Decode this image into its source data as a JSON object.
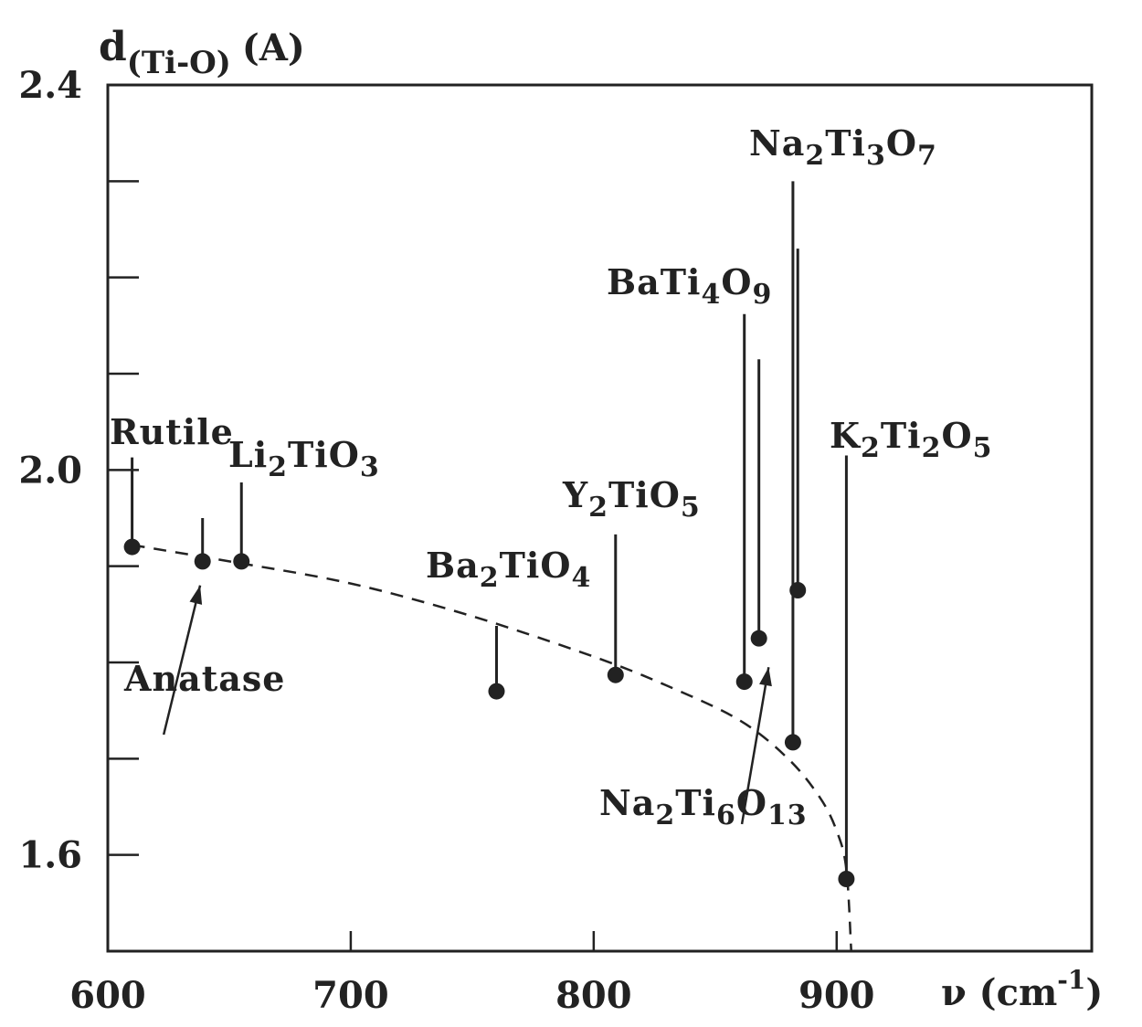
{
  "chart_data": {
    "type": "scatter",
    "ylabel": {
      "main": "d",
      "sub": "(Ti-O)",
      "unit": "(A)"
    },
    "xlabel": {
      "main": "ν (cm",
      "sup": "-1",
      "close": ")"
    },
    "xlim": [
      600,
      1005
    ],
    "ylim": [
      1.5,
      2.4
    ],
    "x_ticks": [
      600,
      700,
      800,
      900
    ],
    "x_tick_labels": [
      "600",
      "700",
      "800",
      "900"
    ],
    "y_ticks": [
      1.6,
      1.7,
      1.8,
      1.9,
      2.0,
      2.1,
      2.2,
      2.3,
      2.4
    ],
    "y_tick_labels": [
      {
        "value": 1.6,
        "label": "1.6"
      },
      {
        "value": 2.0,
        "label": "2.0"
      },
      {
        "value": 2.4,
        "label": "2.4"
      }
    ],
    "grid": false,
    "legend": "none",
    "series": [
      {
        "points": [
          {
            "x": 610,
            "y": 1.92
          },
          {
            "x": 639,
            "y": 1.905
          },
          {
            "x": 655,
            "y": 1.905
          },
          {
            "x": 760,
            "y": 1.77
          },
          {
            "x": 809,
            "y": 1.787
          },
          {
            "x": 862,
            "y": 1.78
          },
          {
            "x": 868,
            "y": 1.825
          },
          {
            "x": 882,
            "y": 1.717
          },
          {
            "x": 884,
            "y": 1.875
          },
          {
            "x": 904,
            "y": 1.575
          }
        ]
      }
    ],
    "stems": [
      {
        "x": 610,
        "y_from": 1.92,
        "y_to": 2.013
      },
      {
        "x": 639,
        "y_from": 1.905,
        "y_to": 1.95
      },
      {
        "x": 655,
        "y_from": 1.905,
        "y_to": 1.987
      },
      {
        "x": 760,
        "y_from": 1.77,
        "y_to": 1.838
      },
      {
        "x": 809,
        "y_from": 1.787,
        "y_to": 1.933
      },
      {
        "x": 862,
        "y_from": 1.78,
        "y_to": 2.162
      },
      {
        "x": 868,
        "y_from": 1.825,
        "y_to": 2.115
      },
      {
        "x": 882,
        "y_from": 1.717,
        "y_to": 2.3
      },
      {
        "x": 884,
        "y_from": 1.875,
        "y_to": 2.23
      },
      {
        "x": 904,
        "y_from": 1.575,
        "y_to": 2.015
      }
    ],
    "trend_curve": [
      {
        "x": 610,
        "y": 1.922
      },
      {
        "x": 650,
        "y": 1.905
      },
      {
        "x": 700,
        "y": 1.882
      },
      {
        "x": 750,
        "y": 1.848
      },
      {
        "x": 800,
        "y": 1.806
      },
      {
        "x": 830,
        "y": 1.776
      },
      {
        "x": 860,
        "y": 1.74
      },
      {
        "x": 880,
        "y": 1.7
      },
      {
        "x": 893,
        "y": 1.66
      },
      {
        "x": 900,
        "y": 1.625
      },
      {
        "x": 904,
        "y": 1.585
      },
      {
        "x": 906,
        "y": 1.5
      }
    ],
    "annotations": [
      {
        "id": "rutile",
        "parts": [
          {
            "t": "Rutile"
          }
        ]
      },
      {
        "id": "li2tio3",
        "parts": [
          {
            "t": "Li"
          },
          {
            "t": "2",
            "sub": true
          },
          {
            "t": "TiO"
          },
          {
            "t": "3",
            "sub": true
          }
        ]
      },
      {
        "id": "anatase",
        "parts": [
          {
            "t": "Anatase"
          }
        ]
      },
      {
        "id": "ba2tio4",
        "parts": [
          {
            "t": "Ba"
          },
          {
            "t": "2",
            "sub": true
          },
          {
            "t": "TiO"
          },
          {
            "t": "4",
            "sub": true
          }
        ]
      },
      {
        "id": "y2tio5",
        "parts": [
          {
            "t": "Y"
          },
          {
            "t": "2",
            "sub": true
          },
          {
            "t": "TiO"
          },
          {
            "t": "5",
            "sub": true
          }
        ]
      },
      {
        "id": "bati4o9",
        "parts": [
          {
            "t": "BaTi"
          },
          {
            "t": "4",
            "sub": true
          },
          {
            "t": "O"
          },
          {
            "t": "9",
            "sub": true
          }
        ]
      },
      {
        "id": "na2ti3o7",
        "parts": [
          {
            "t": "Na"
          },
          {
            "t": "2",
            "sub": true
          },
          {
            "t": "Ti"
          },
          {
            "t": "3",
            "sub": true
          },
          {
            "t": "O"
          },
          {
            "t": "7",
            "sub": true
          }
        ]
      },
      {
        "id": "k2ti2o5",
        "parts": [
          {
            "t": "K"
          },
          {
            "t": "2",
            "sub": true
          },
          {
            "t": "Ti"
          },
          {
            "t": "2",
            "sub": true
          },
          {
            "t": "O"
          },
          {
            "t": "5",
            "sub": true
          }
        ]
      },
      {
        "id": "na2ti6o13",
        "parts": [
          {
            "t": "Na"
          },
          {
            "t": "2",
            "sub": true
          },
          {
            "t": "Ti"
          },
          {
            "t": "6",
            "sub": true
          },
          {
            "t": "O"
          },
          {
            "t": "13",
            "sub": true
          }
        ]
      }
    ]
  }
}
